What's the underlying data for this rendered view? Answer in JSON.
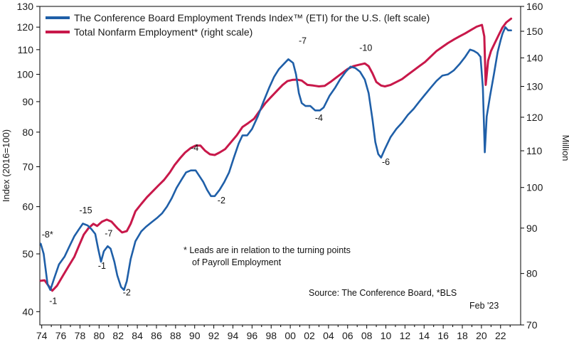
{
  "chart_data": {
    "type": "line",
    "x_ticks": [
      "74",
      "76",
      "78",
      "80",
      "82",
      "84",
      "86",
      "88",
      "90",
      "92",
      "94",
      "96",
      "98",
      "00",
      "02",
      "04",
      "06",
      "08",
      "10",
      "12",
      "14",
      "16",
      "18",
      "20",
      "22"
    ],
    "y_left": {
      "label": "Index (2016=100)",
      "scale": "log",
      "range": [
        38,
        130
      ],
      "ticks": [
        40,
        50,
        60,
        70,
        80,
        90,
        100,
        110,
        120,
        130
      ]
    },
    "y_right": {
      "label": "Million",
      "scale": "log",
      "range": [
        70,
        160
      ],
      "ticks": [
        70,
        80,
        90,
        100,
        110,
        120,
        130,
        140,
        150,
        160
      ]
    },
    "legend_position": "top-left",
    "grid": false,
    "series": [
      {
        "name": "The Conference Board Employment Trends Index™ (ETI) for the U.S. (left scale)",
        "axis": "left",
        "color": "#1f5fa8",
        "points": [
          [
            1973.9,
            52
          ],
          [
            1974.2,
            50
          ],
          [
            1974.6,
            44.5
          ],
          [
            1974.9,
            43.5
          ],
          [
            1975.3,
            45.5
          ],
          [
            1975.8,
            48
          ],
          [
            1976.4,
            49.5
          ],
          [
            1976.9,
            51.5
          ],
          [
            1977.4,
            53.5
          ],
          [
            1977.9,
            55
          ],
          [
            1978.3,
            56.2
          ],
          [
            1978.8,
            55.8
          ],
          [
            1979.2,
            55
          ],
          [
            1979.6,
            54
          ],
          [
            1979.9,
            51
          ],
          [
            1980.2,
            48.5
          ],
          [
            1980.5,
            50.5
          ],
          [
            1980.9,
            51.5
          ],
          [
            1981.2,
            51
          ],
          [
            1981.6,
            48.5
          ],
          [
            1981.9,
            46
          ],
          [
            1982.3,
            44
          ],
          [
            1982.6,
            43.5
          ],
          [
            1982.9,
            45
          ],
          [
            1983.3,
            49
          ],
          [
            1983.8,
            52.5
          ],
          [
            1984.4,
            54.5
          ],
          [
            1984.9,
            55.5
          ],
          [
            1985.5,
            56.5
          ],
          [
            1986.1,
            57.5
          ],
          [
            1986.6,
            58.5
          ],
          [
            1987.1,
            60
          ],
          [
            1987.6,
            62
          ],
          [
            1988.1,
            64.5
          ],
          [
            1988.6,
            66.5
          ],
          [
            1989.1,
            68.5
          ],
          [
            1989.6,
            69
          ],
          [
            1990.1,
            69
          ],
          [
            1990.5,
            67.5
          ],
          [
            1990.9,
            66
          ],
          [
            1991.3,
            64
          ],
          [
            1991.7,
            62.5
          ],
          [
            1992.1,
            62.5
          ],
          [
            1992.6,
            64
          ],
          [
            1993.1,
            66
          ],
          [
            1993.6,
            68.5
          ],
          [
            1994.1,
            72.5
          ],
          [
            1994.6,
            76.5
          ],
          [
            1995.0,
            79
          ],
          [
            1995.5,
            79
          ],
          [
            1996.0,
            81
          ],
          [
            1996.6,
            85
          ],
          [
            1997.2,
            90
          ],
          [
            1997.8,
            95
          ],
          [
            1998.3,
            99
          ],
          [
            1998.8,
            102
          ],
          [
            1999.3,
            104
          ],
          [
            1999.8,
            106
          ],
          [
            2000.3,
            104.5
          ],
          [
            2000.6,
            100
          ],
          [
            2000.9,
            93
          ],
          [
            2001.2,
            89.5
          ],
          [
            2001.6,
            88.5
          ],
          [
            2002.1,
            88.5
          ],
          [
            2002.6,
            87
          ],
          [
            2003.1,
            87
          ],
          [
            2003.5,
            88
          ],
          [
            2004.1,
            92
          ],
          [
            2004.7,
            95
          ],
          [
            2005.2,
            98
          ],
          [
            2005.8,
            101
          ],
          [
            2006.3,
            103
          ],
          [
            2006.8,
            102.5
          ],
          [
            2007.3,
            101
          ],
          [
            2007.8,
            98
          ],
          [
            2008.2,
            93
          ],
          [
            2008.6,
            84
          ],
          [
            2008.9,
            77
          ],
          [
            2009.2,
            73.5
          ],
          [
            2009.5,
            72.5
          ],
          [
            2009.9,
            75
          ],
          [
            2010.5,
            78.5
          ],
          [
            2011.1,
            81
          ],
          [
            2011.7,
            83
          ],
          [
            2012.3,
            85.5
          ],
          [
            2012.9,
            87.5
          ],
          [
            2013.5,
            90
          ],
          [
            2014.1,
            92.5
          ],
          [
            2014.7,
            95
          ],
          [
            2015.3,
            97.5
          ],
          [
            2015.9,
            99.5
          ],
          [
            2016.5,
            100
          ],
          [
            2017.1,
            101.5
          ],
          [
            2017.7,
            104
          ],
          [
            2018.3,
            107
          ],
          [
            2018.8,
            110
          ],
          [
            2019.2,
            109.5
          ],
          [
            2019.6,
            108.5
          ],
          [
            2019.9,
            107
          ],
          [
            2020.15,
            95
          ],
          [
            2020.35,
            74
          ],
          [
            2020.55,
            85
          ],
          [
            2020.9,
            92
          ],
          [
            2021.3,
            100
          ],
          [
            2021.7,
            109
          ],
          [
            2022.0,
            114
          ],
          [
            2022.2,
            117
          ],
          [
            2022.5,
            120
          ],
          [
            2022.8,
            118.5
          ],
          [
            2023.1,
            118.5
          ]
        ]
      },
      {
        "name": "Total Nonfarm Employment* (right scale)",
        "axis": "right",
        "color": "#c8184a",
        "points": [
          [
            1973.9,
            78.5
          ],
          [
            1974.3,
            78.6
          ],
          [
            1974.7,
            77.5
          ],
          [
            1975.1,
            76.5
          ],
          [
            1975.6,
            77.5
          ],
          [
            1976.2,
            79.5
          ],
          [
            1976.8,
            81.5
          ],
          [
            1977.4,
            83.5
          ],
          [
            1977.9,
            86
          ],
          [
            1978.4,
            88.5
          ],
          [
            1978.9,
            90
          ],
          [
            1979.4,
            91
          ],
          [
            1979.8,
            90.5
          ],
          [
            1980.3,
            91.5
          ],
          [
            1980.8,
            92
          ],
          [
            1981.3,
            91.5
          ],
          [
            1981.9,
            90
          ],
          [
            1982.4,
            89
          ],
          [
            1982.9,
            89.3
          ],
          [
            1983.3,
            91
          ],
          [
            1983.8,
            94
          ],
          [
            1984.4,
            95.8
          ],
          [
            1985.0,
            97.5
          ],
          [
            1985.6,
            99
          ],
          [
            1986.2,
            100.5
          ],
          [
            1986.8,
            102
          ],
          [
            1987.4,
            104
          ],
          [
            1987.9,
            106
          ],
          [
            1988.5,
            108
          ],
          [
            1989.0,
            109.5
          ],
          [
            1989.6,
            110.8
          ],
          [
            1990.1,
            111.5
          ],
          [
            1990.6,
            111.5
          ],
          [
            1991.1,
            110
          ],
          [
            1991.6,
            109
          ],
          [
            1992.1,
            108.8
          ],
          [
            1992.6,
            109.5
          ],
          [
            1993.2,
            110.5
          ],
          [
            1993.8,
            112.5
          ],
          [
            1994.4,
            114.5
          ],
          [
            1995.0,
            117
          ],
          [
            1995.6,
            118.2
          ],
          [
            1996.2,
            119.5
          ],
          [
            1996.8,
            122
          ],
          [
            1997.4,
            124.5
          ],
          [
            1998.0,
            126.5
          ],
          [
            1998.6,
            128.5
          ],
          [
            1999.2,
            130.5
          ],
          [
            1999.7,
            131.8
          ],
          [
            2000.2,
            132.2
          ],
          [
            2000.7,
            132.3
          ],
          [
            2001.2,
            132
          ],
          [
            2001.8,
            130.5
          ],
          [
            2002.4,
            130.3
          ],
          [
            2003.0,
            130
          ],
          [
            2003.6,
            130.2
          ],
          [
            2004.2,
            131.5
          ],
          [
            2004.8,
            133
          ],
          [
            2005.4,
            134.5
          ],
          [
            2006.0,
            136
          ],
          [
            2006.6,
            137
          ],
          [
            2007.2,
            137.5
          ],
          [
            2007.8,
            138
          ],
          [
            2008.2,
            137
          ],
          [
            2008.6,
            134.5
          ],
          [
            2009.0,
            131.5
          ],
          [
            2009.5,
            130.3
          ],
          [
            2009.9,
            130
          ],
          [
            2010.5,
            130.5
          ],
          [
            2011.1,
            131.5
          ],
          [
            2011.7,
            132.5
          ],
          [
            2012.3,
            134
          ],
          [
            2012.9,
            135.5
          ],
          [
            2013.5,
            137
          ],
          [
            2014.1,
            138.5
          ],
          [
            2014.7,
            140.5
          ],
          [
            2015.3,
            142.5
          ],
          [
            2015.9,
            144
          ],
          [
            2016.5,
            145.5
          ],
          [
            2017.1,
            146.8
          ],
          [
            2017.7,
            148
          ],
          [
            2018.3,
            149.2
          ],
          [
            2018.9,
            150.5
          ],
          [
            2019.5,
            151.8
          ],
          [
            2020.05,
            152.5
          ],
          [
            2020.3,
            148
          ],
          [
            2020.45,
            130.5
          ],
          [
            2020.7,
            139
          ],
          [
            2021.0,
            142.5
          ],
          [
            2021.4,
            145.5
          ],
          [
            2021.8,
            148.5
          ],
          [
            2022.2,
            151.5
          ],
          [
            2022.6,
            153.5
          ],
          [
            2023.1,
            155
          ]
        ]
      }
    ],
    "annotations": [
      {
        "text": "-8*",
        "x": 1974.6,
        "y": 53.3
      },
      {
        "text": "-1",
        "x": 1975.2,
        "y": 41.2
      },
      {
        "text": "-15",
        "x": 1978.6,
        "y": 58.5
      },
      {
        "text": "-7",
        "x": 1981.0,
        "y": 53.5
      },
      {
        "text": "-1",
        "x": 1980.3,
        "y": 47.2
      },
      {
        "text": "-2",
        "x": 1982.9,
        "y": 42.6
      },
      {
        "text": "-4",
        "x": 1990.0,
        "y": 74.5
      },
      {
        "text": "-2",
        "x": 1992.8,
        "y": 60.8
      },
      {
        "text": "-7",
        "x": 2001.3,
        "y": 112.5
      },
      {
        "text": "-4",
        "x": 2003.0,
        "y": 83.5
      },
      {
        "text": "-10",
        "x": 2007.9,
        "y": 109.5
      },
      {
        "text": "-6",
        "x": 2010.0,
        "y": 70.5
      }
    ],
    "notes": {
      "leads_line1": "* Leads are in relation to the turning points",
      "leads_line2": "of Payroll Employment",
      "source": "Source: The Conference Board, *BLS",
      "date": "Feb '23"
    }
  }
}
